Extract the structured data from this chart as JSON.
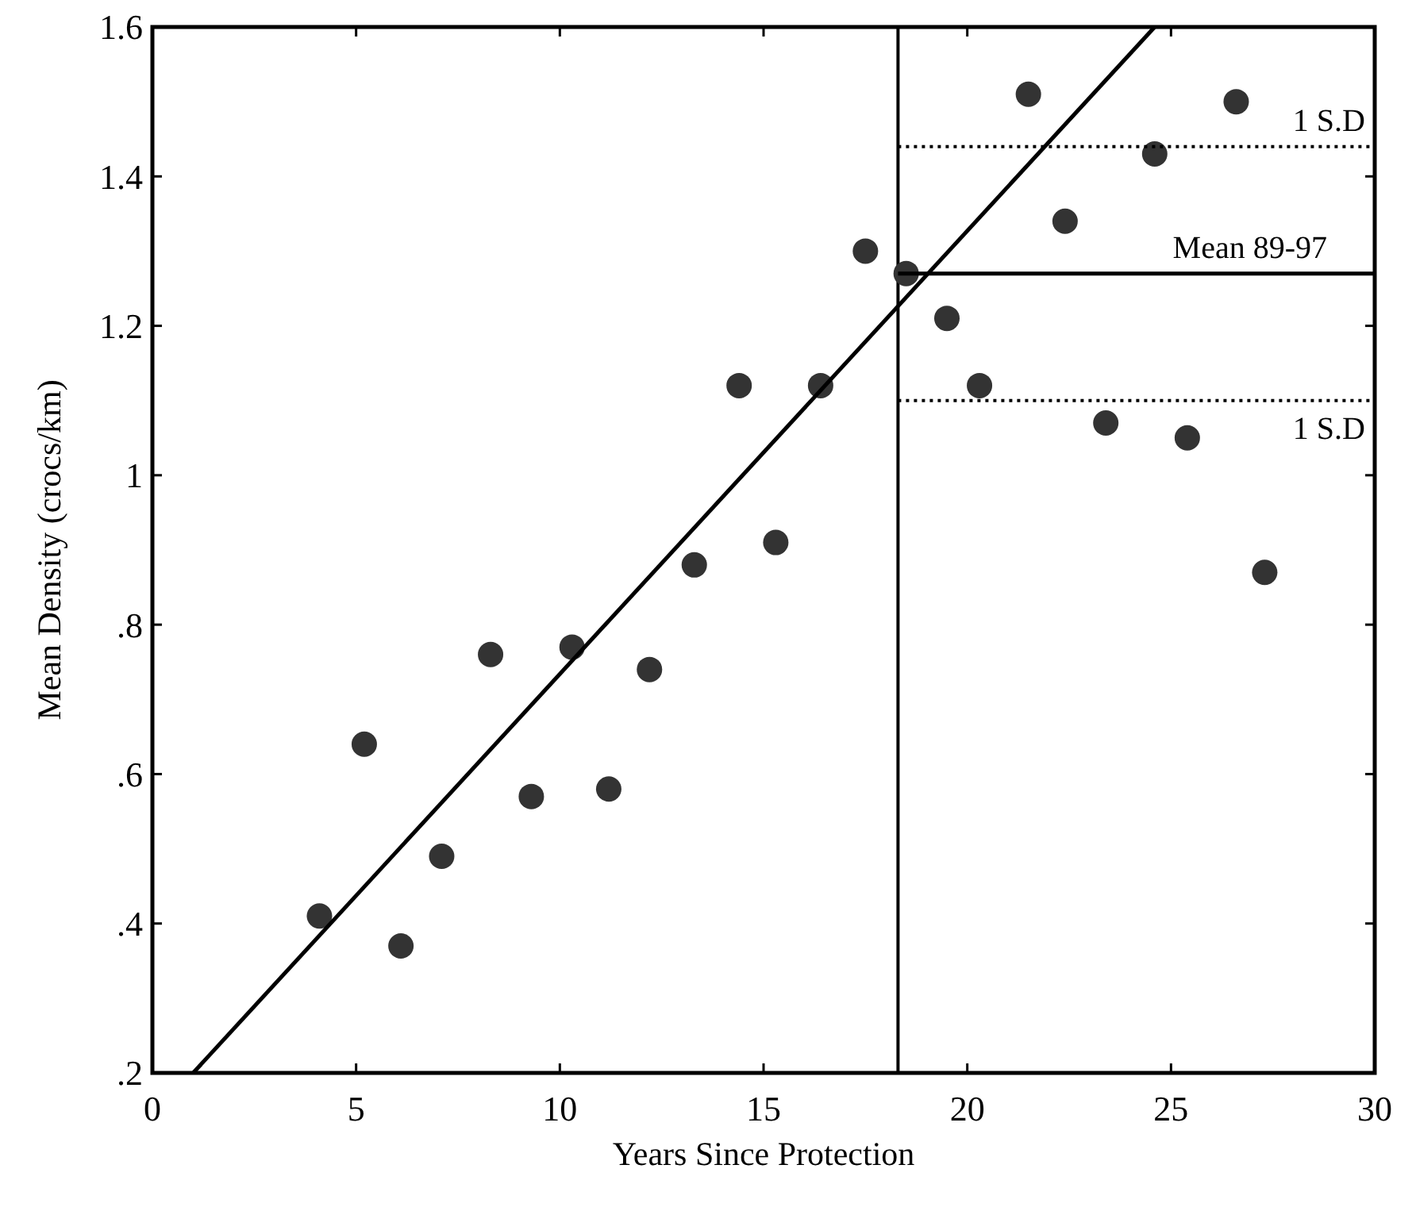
{
  "chart_data": {
    "type": "scatter",
    "xlabel": "Years Since Protection",
    "ylabel": "Mean Density (crocs/km)",
    "xlim": [
      0,
      30
    ],
    "ylim": [
      0.2,
      1.6
    ],
    "xticks": [
      0,
      5,
      10,
      15,
      20,
      25,
      30
    ],
    "yticks": [
      {
        "value": 0.2,
        "label": ".2"
      },
      {
        "value": 0.4,
        "label": ".4"
      },
      {
        "value": 0.6,
        "label": ".6"
      },
      {
        "value": 0.8,
        "label": ".8"
      },
      1,
      1.2,
      1.4,
      1.6
    ],
    "grid": false,
    "series": [
      {
        "color": "#333333",
        "marker": "circle",
        "x": [
          4.1,
          5.2,
          6.1,
          7.1,
          8.3,
          9.3,
          10.3,
          11.2,
          12.2,
          13.3,
          14.4,
          15.3,
          16.4,
          17.5,
          18.5,
          19.5,
          20.3,
          21.5,
          22.4,
          23.4,
          24.6,
          25.4,
          26.6,
          27.3
        ],
        "values": [
          0.41,
          0.64,
          0.37,
          0.49,
          0.76,
          0.57,
          0.77,
          0.58,
          0.74,
          0.88,
          1.12,
          0.91,
          1.12,
          1.3,
          1.27,
          1.21,
          1.12,
          1.51,
          1.34,
          1.07,
          1.43,
          1.05,
          1.5,
          0.87
        ]
      },
      {
        "type": "line",
        "color": "#000000",
        "marker": "none",
        "line_style": "solid",
        "x": [
          1,
          24.6
        ],
        "values": [
          0.2,
          1.6
        ]
      },
      {
        "type": "line",
        "name": "Mean 89-97",
        "color": "#000000",
        "marker": "none",
        "line_style": "solid",
        "x": [
          18.3,
          30
        ],
        "values": [
          1.27,
          1.27
        ]
      },
      {
        "type": "line",
        "name": "1 S.D",
        "color": "#000000",
        "marker": "none",
        "line_style": "dotted",
        "x": [
          18.3,
          30
        ],
        "values": [
          1.44,
          1.44
        ]
      },
      {
        "type": "line",
        "name": "1 S.D",
        "color": "#000000",
        "marker": "none",
        "line_style": "dotted",
        "x": [
          18.3,
          30
        ],
        "values": [
          1.1,
          1.1
        ]
      }
    ],
    "ref_lines": [
      {
        "axis": "x",
        "value": 18.3,
        "color": "#000000",
        "line_style": "solid"
      }
    ]
  }
}
